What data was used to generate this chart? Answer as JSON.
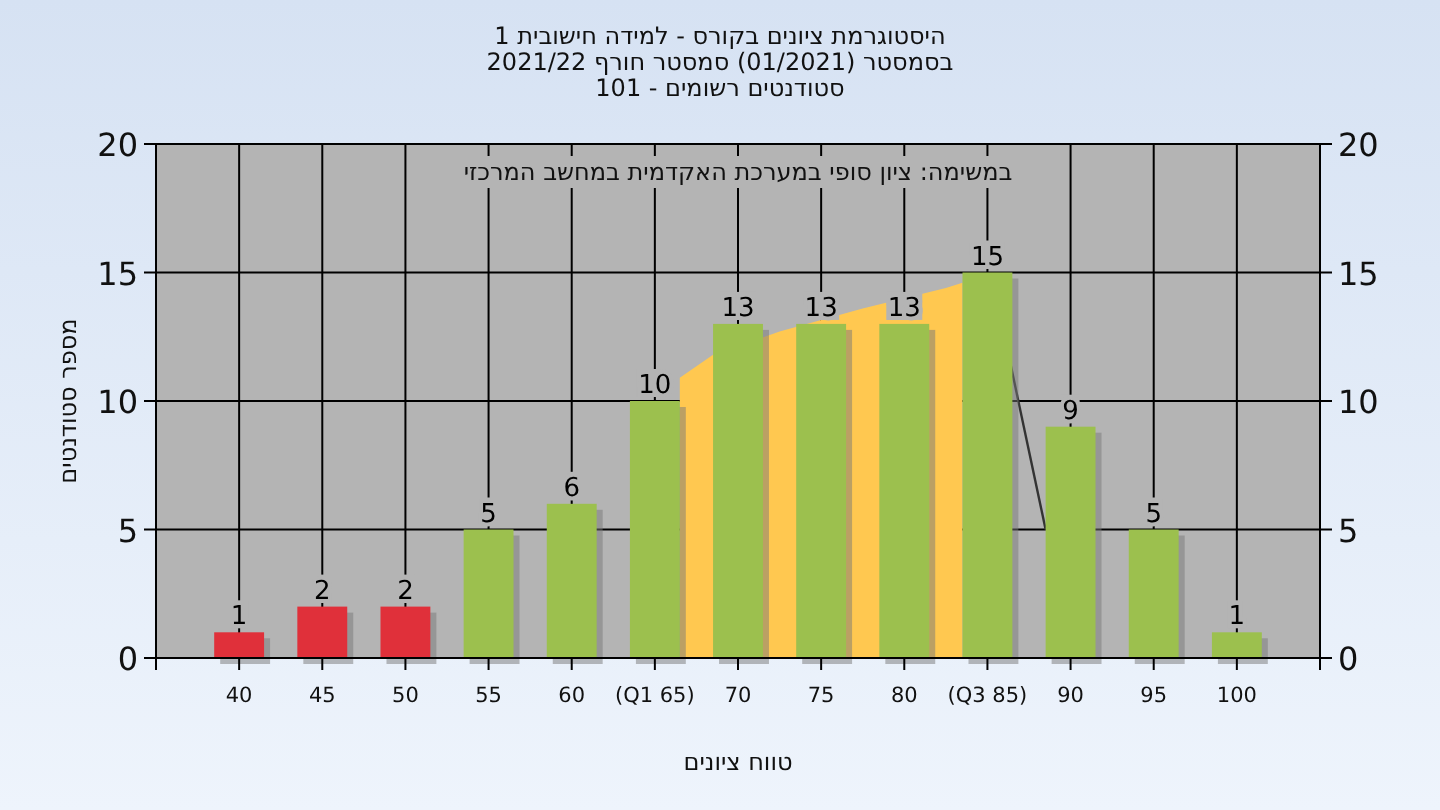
{
  "chart_data": {
    "type": "bar",
    "title": "היסטוגרמת ציונים בקורס - למידה חישובית 1",
    "subtitle": [
      "בסמסטר (01/2021) סמסטר חורף 2021/22",
      "סטודנטים רשומים - 101"
    ],
    "xlabel": "טווח ציונים",
    "ylabel": "מספר סטודנטים",
    "annotations": [
      "במשימה: ציון סופי במערכת האקדמית במחשב המרכזי"
    ],
    "series": [
      {
        "type": "area",
        "color": "#ffc850",
        "x": [
          66.5,
          68.5,
          72.5,
          77.5,
          82.5,
          83.5
        ],
        "values": [
          10.9,
          11.8,
          12.7,
          13.6,
          14.4,
          14.6
        ]
      },
      {
        "type": "line",
        "color": "#333333",
        "x": [
          86.4,
          88.5
        ],
        "values": [
          11.4,
          5
        ]
      },
      {
        "data_labels": true,
        "x": [
          40,
          45,
          50,
          55,
          60,
          65,
          70,
          75,
          80,
          85,
          90,
          95,
          100
        ],
        "values": [
          1,
          2,
          2,
          5,
          6,
          10,
          13,
          13,
          13,
          15,
          9,
          5,
          1
        ],
        "colors": [
          "#e0303a",
          "#e0303a",
          "#e0303a",
          "#9cc04e",
          "#9cc04e",
          "#9cc04e",
          "#9cc04e",
          "#9cc04e",
          "#9cc04e",
          "#9cc04e",
          "#9cc04e",
          "#9cc04e",
          "#9cc04e"
        ]
      }
    ],
    "xlim": [
      35,
      105
    ],
    "xticks": [
      {
        "value": 35,
        "label": null
      },
      40,
      45,
      50,
      55,
      60,
      {
        "value": 65,
        "label": "(Q1 65)"
      },
      70,
      75,
      80,
      {
        "value": 85,
        "label": "(Q3 85)"
      },
      90,
      95,
      100,
      {
        "value": 105,
        "label": null
      }
    ],
    "ylim": [
      0,
      20
    ],
    "yticks": [
      0,
      5,
      10,
      15,
      20
    ],
    "y2lim": [
      0,
      20
    ],
    "y2ticks": [
      0,
      5,
      10,
      15,
      20
    ],
    "grid": true
  }
}
